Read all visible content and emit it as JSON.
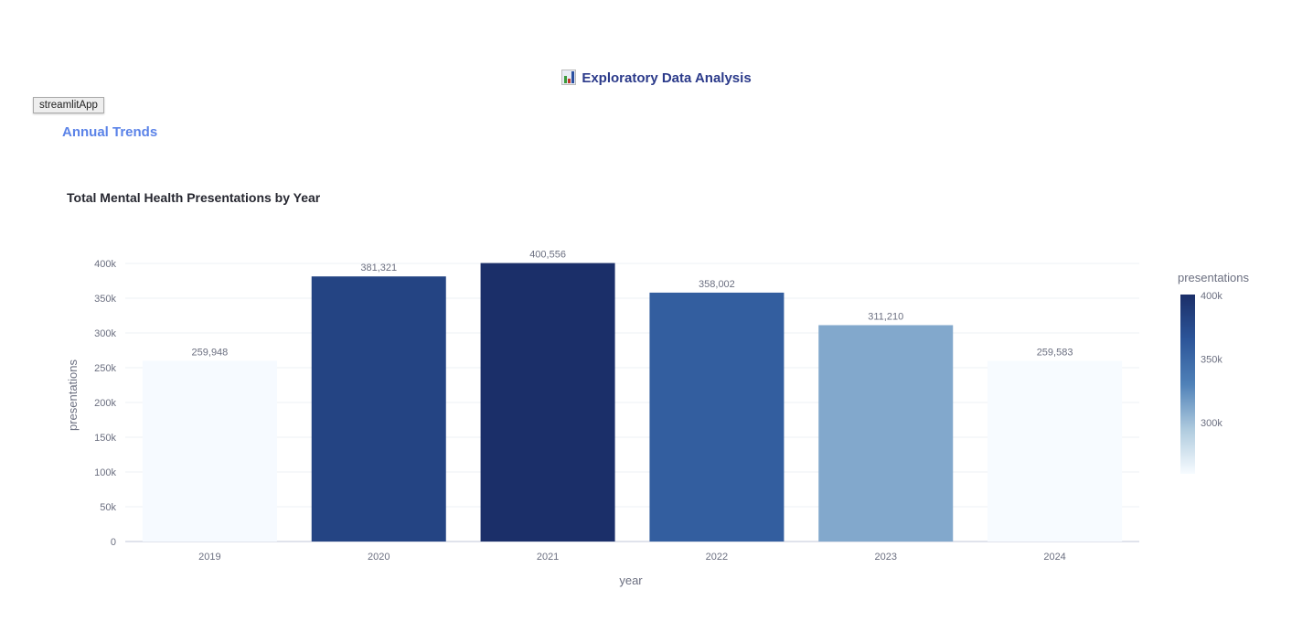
{
  "page": {
    "title": "Exploratory Data Analysis",
    "title_icon": "bar-chart-icon",
    "subheader": "Annual Trends",
    "tooltip": "streamlitApp"
  },
  "chart_data": {
    "type": "bar",
    "title": "Total Mental Health Presentations by Year",
    "categories": [
      "2019",
      "2020",
      "2021",
      "2022",
      "2023",
      "2024"
    ],
    "values": [
      259948,
      381321,
      400556,
      358002,
      311210,
      259583
    ],
    "data_labels": [
      "259,948",
      "381,321",
      "400,556",
      "358,002",
      "311,210",
      "259,583"
    ],
    "xlabel": "year",
    "ylabel": "presentations",
    "ylim": [
      0,
      400000
    ],
    "yticks": [
      0,
      50000,
      100000,
      150000,
      200000,
      250000,
      300000,
      350000,
      400000
    ],
    "ytick_labels": [
      "0",
      "50k",
      "100k",
      "150k",
      "200k",
      "250k",
      "300k",
      "350k",
      "400k"
    ],
    "grid": true,
    "colorscale": {
      "title": "presentations",
      "range": [
        259583,
        400556
      ],
      "ticks": [
        300000,
        350000,
        400000
      ],
      "tick_labels": [
        "300k",
        "350k",
        "400k"
      ],
      "colors": [
        "#f7fbff",
        "#aecade",
        "#4f81b8",
        "#2c5599",
        "#1b2f69"
      ],
      "placement": "right"
    }
  }
}
